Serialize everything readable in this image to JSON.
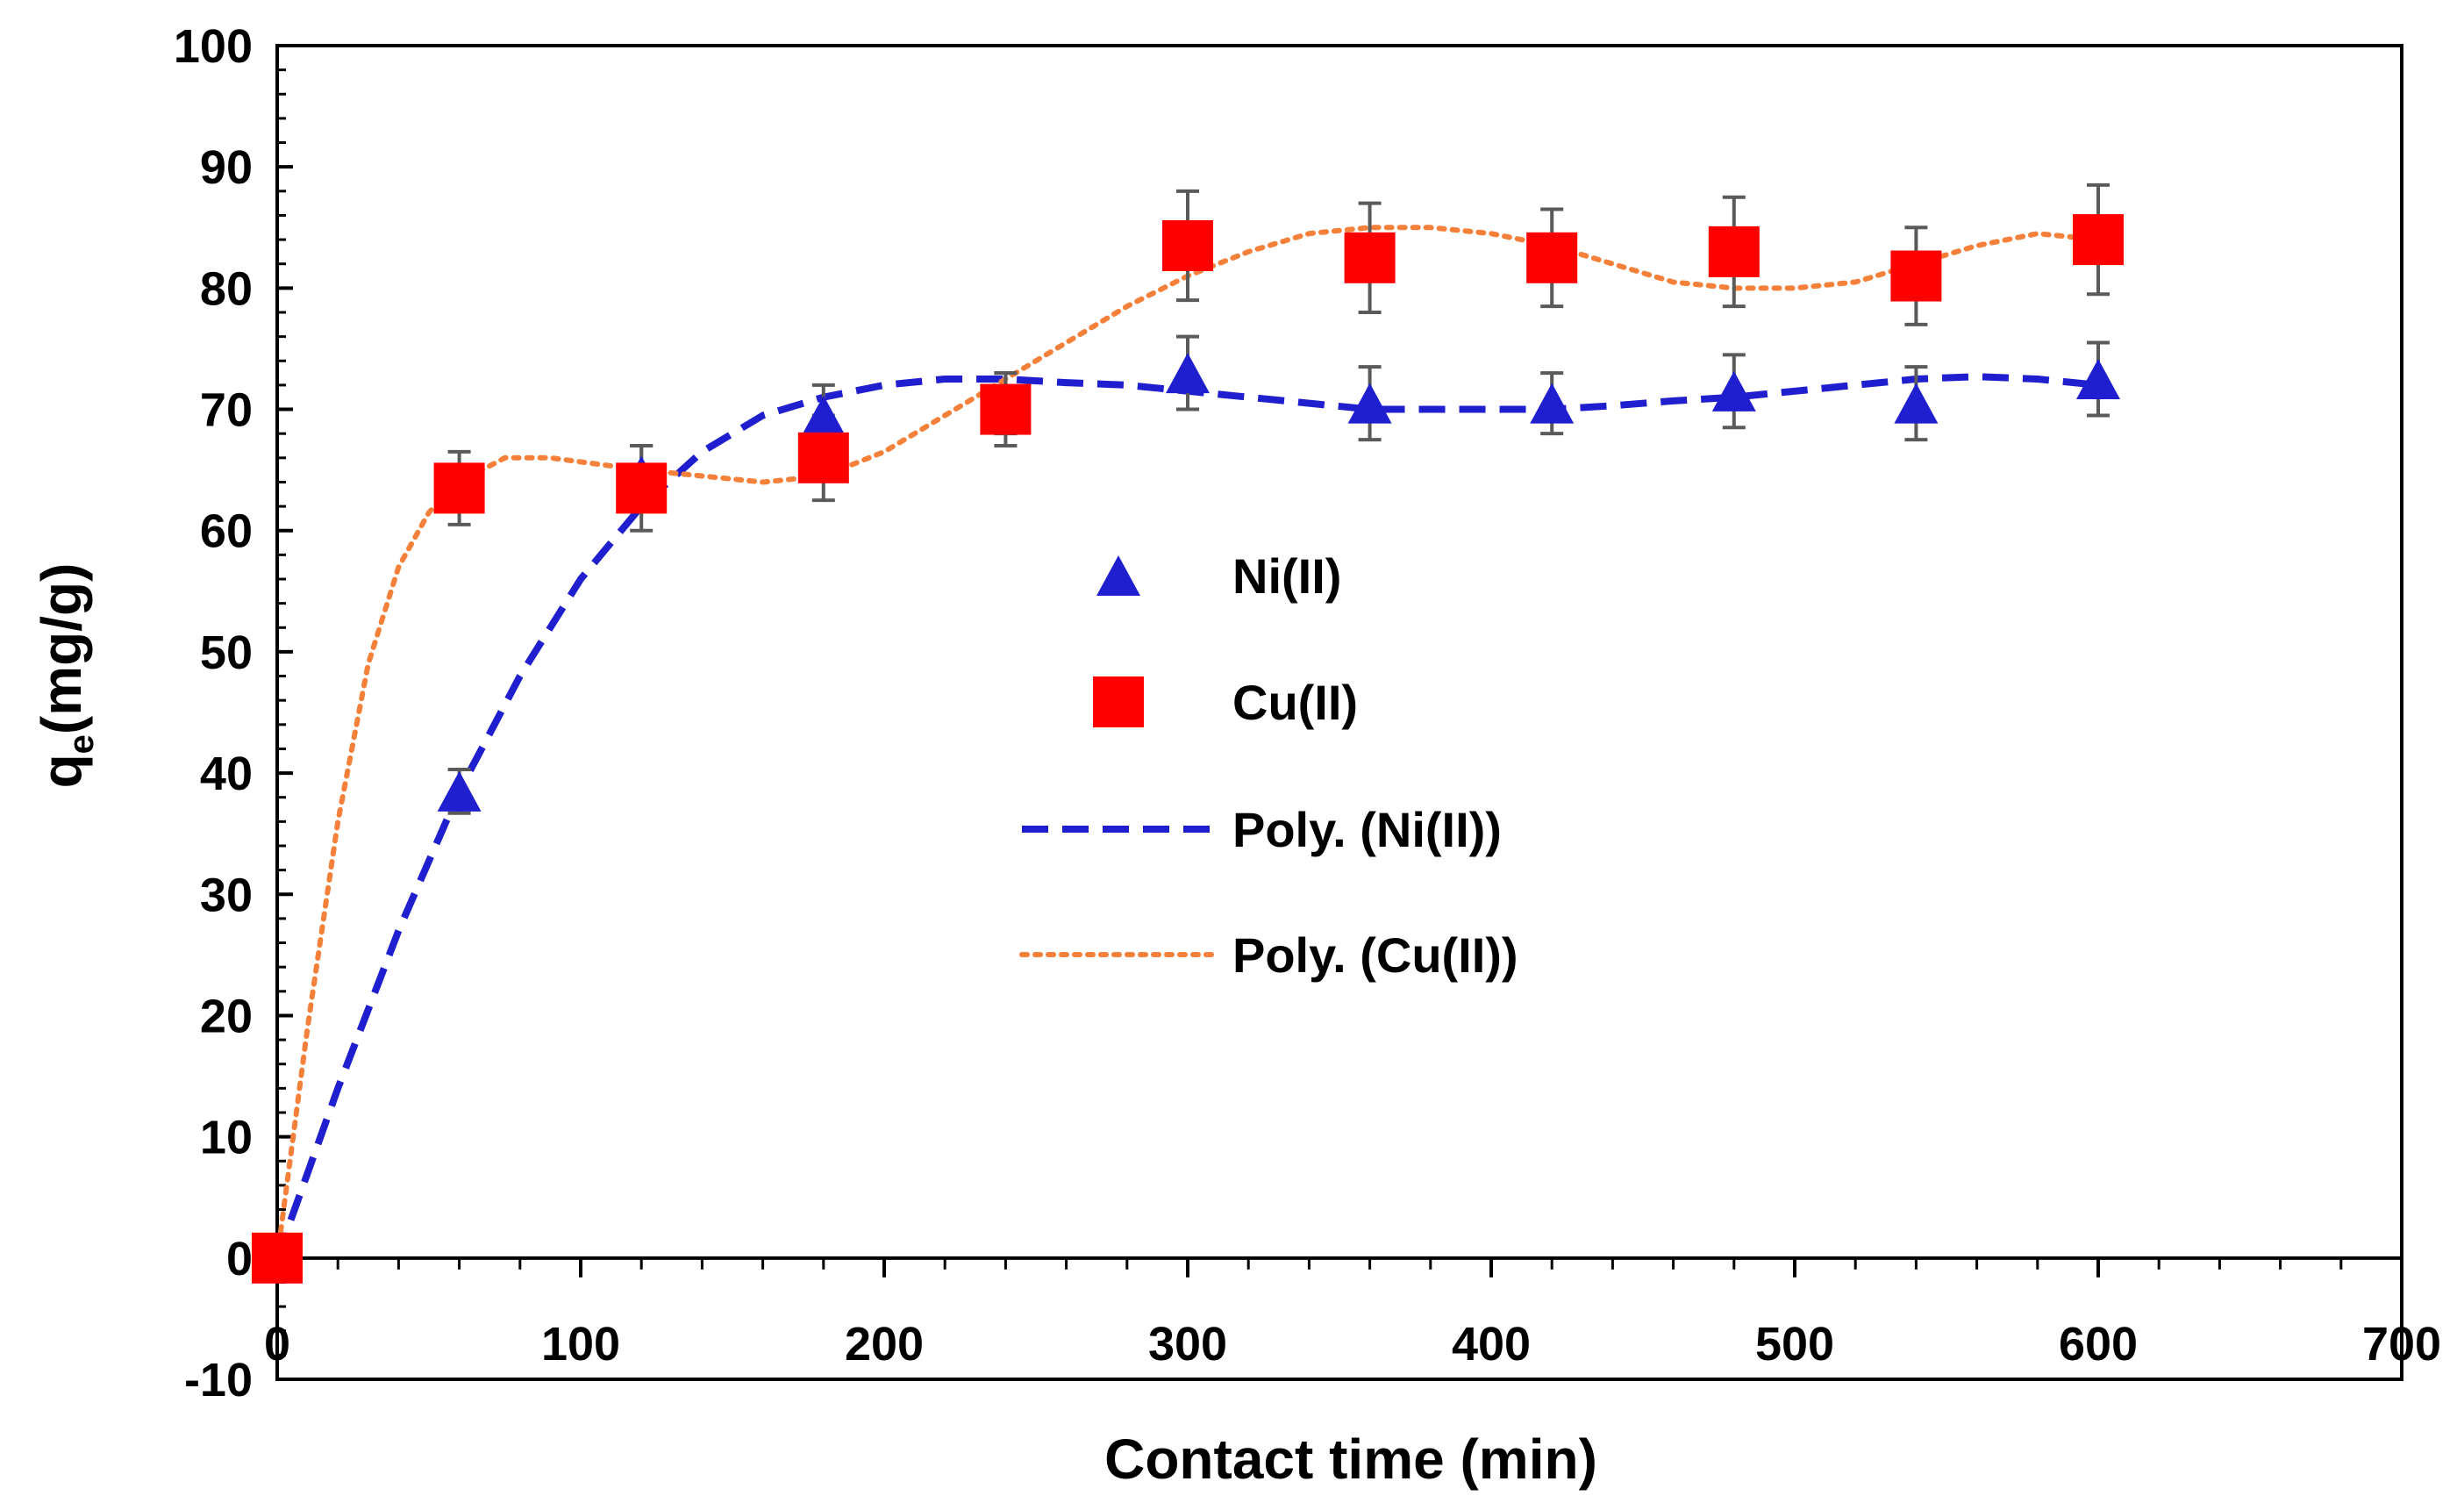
{
  "chart_data": {
    "type": "scatter",
    "title": "",
    "xlabel": "Contact time (min)",
    "ylabel_main": "q",
    "ylabel_sub": "e",
    "ylabel_rest": "(mg/g)",
    "xlim": [
      0,
      700
    ],
    "ylim": [
      -10,
      100
    ],
    "x_ticks": [
      0,
      100,
      200,
      300,
      400,
      500,
      600,
      700
    ],
    "y_ticks": [
      -10,
      0,
      10,
      20,
      30,
      40,
      50,
      60,
      70,
      80,
      90,
      100
    ],
    "x_tick_labels": [
      "0",
      "100",
      "200",
      "300",
      "400",
      "500",
      "600",
      "700"
    ],
    "y_tick_labels": [
      "-10",
      "0",
      "10",
      "20",
      "30",
      "40",
      "50",
      "60",
      "70",
      "80",
      "90",
      "100"
    ],
    "grid": false,
    "legend_position": "center-left",
    "series": [
      {
        "name": "Ni(II)",
        "marker": "triangle",
        "color": "#1F1FCF",
        "x": [
          0,
          60,
          120,
          180,
          240,
          300,
          360,
          420,
          480,
          540,
          600
        ],
        "y": [
          0,
          38.5,
          64.5,
          69.5,
          70.5,
          73,
          70.5,
          70.5,
          71.5,
          70.5,
          72.5
        ],
        "error": [
          0,
          1.8,
          2.5,
          2.5,
          2.5,
          3,
          3,
          2.5,
          3,
          3,
          3
        ]
      },
      {
        "name": "Cu(II)",
        "marker": "square",
        "color": "#FF0000",
        "x": [
          0,
          60,
          120,
          180,
          240,
          300,
          360,
          420,
          480,
          540,
          600
        ],
        "y": [
          0,
          63.5,
          63.5,
          66,
          70,
          83.5,
          82.5,
          82.5,
          83,
          81,
          84
        ],
        "error": [
          0,
          3,
          3.5,
          3.5,
          3,
          4.5,
          4.5,
          4,
          4.5,
          4,
          4.5
        ]
      },
      {
        "name": "Poly. (Ni(II))",
        "line": "dashed",
        "color": "#1F1FCF",
        "x": [
          0,
          20,
          40,
          60,
          80,
          100,
          120,
          140,
          160,
          180,
          200,
          220,
          240,
          260,
          280,
          300,
          320,
          340,
          360,
          380,
          400,
          420,
          440,
          460,
          480,
          500,
          520,
          540,
          560,
          580,
          600
        ],
        "y": [
          0,
          14,
          27,
          38.5,
          48,
          56,
          62,
          66.5,
          69.5,
          71,
          72,
          72.5,
          72.5,
          72.2,
          72,
          71.5,
          71,
          70.5,
          70,
          70,
          70,
          70,
          70.3,
          70.7,
          71,
          71.5,
          72,
          72.5,
          72.7,
          72.5,
          72
        ]
      },
      {
        "name": "Poly. (Cu(II))",
        "line": "dotted",
        "color": "#F4803A",
        "x": [
          0,
          10,
          20,
          30,
          40,
          50,
          60,
          75,
          90,
          105,
          120,
          140,
          160,
          180,
          200,
          220,
          240,
          260,
          280,
          300,
          320,
          340,
          360,
          380,
          400,
          420,
          440,
          460,
          480,
          500,
          520,
          540,
          560,
          580,
          600
        ],
        "y": [
          0,
          19,
          36,
          49,
          57,
          61.5,
          64,
          66,
          66,
          65.5,
          65,
          64.5,
          64,
          64.5,
          66.5,
          69.5,
          72.5,
          75.5,
          78.5,
          81,
          83,
          84.5,
          85,
          85,
          84.5,
          83.5,
          82,
          80.5,
          80,
          80,
          80.5,
          82,
          83.5,
          84.5,
          84
        ]
      }
    ]
  }
}
